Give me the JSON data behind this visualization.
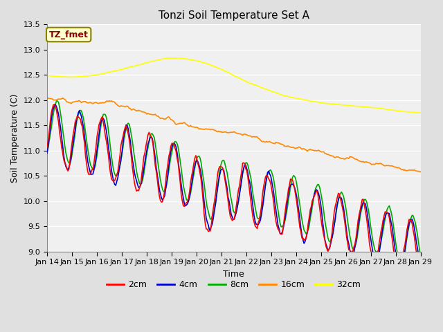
{
  "title": "Tonzi Soil Temperature Set A",
  "xlabel": "Time",
  "ylabel": "Soil Temperature (C)",
  "ylim": [
    9.0,
    13.5
  ],
  "x_tick_labels": [
    "Jan 14",
    "Jan 15",
    "Jan 16",
    "Jan 17",
    "Jan 18",
    "Jan 19",
    "Jan 20",
    "Jan 21",
    "Jan 22",
    "Jan 23",
    "Jan 24",
    "Jan 25",
    "Jan 26",
    "Jan 27",
    "Jan 28",
    "Jan 29"
  ],
  "annotation_text": "TZ_fmet",
  "annotation_color": "#8B0000",
  "annotation_bg": "#FFFFCC",
  "annotation_border": "#8B8000",
  "colors": {
    "2cm": "#FF0000",
    "4cm": "#0000CC",
    "8cm": "#00AA00",
    "16cm": "#FF8800",
    "32cm": "#FFFF00"
  },
  "line_width": 1.2,
  "bg_color": "#E0E0E0",
  "plot_bg": "#F0F0F0",
  "grid_color": "#FFFFFF",
  "title_fontsize": 11,
  "label_fontsize": 9,
  "tick_fontsize": 8
}
